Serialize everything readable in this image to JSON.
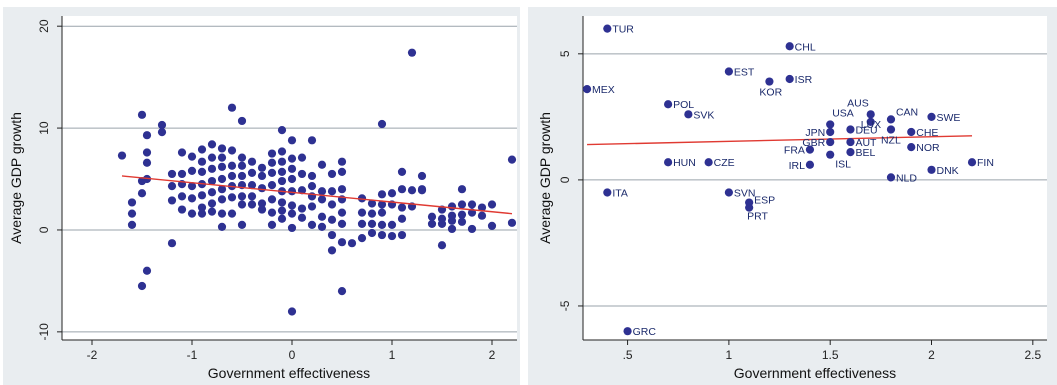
{
  "colors": {
    "point": "#2e3192",
    "fit_line": "#e03a32",
    "panel_bg": "#e9edf0",
    "plot_bg": "#ffffff",
    "grid": "#9aa3ab"
  },
  "chart_data": [
    {
      "type": "scatter",
      "title": "",
      "xlabel": "Government effectiveness",
      "ylabel": "Average GDP growth",
      "xlim": [
        -2.3,
        2.25
      ],
      "ylim": [
        -10.8,
        21
      ],
      "xticks": [
        -2,
        -1,
        0,
        1,
        2
      ],
      "xtick_labels": [
        "-2",
        "-1",
        "0",
        "1",
        "2"
      ],
      "yticks": [
        -10,
        0,
        10,
        20
      ],
      "ytick_labels": [
        "-10",
        "0",
        "10",
        "20"
      ],
      "grid": true,
      "fit_line": {
        "x": [
          -1.7,
          2.2
        ],
        "y": [
          5.3,
          1.6
        ]
      },
      "points": [
        {
          "x": -1.7,
          "y": 7.3
        },
        {
          "x": -1.6,
          "y": 2.7
        },
        {
          "x": -1.6,
          "y": 1.6
        },
        {
          "x": -1.6,
          "y": 0.5
        },
        {
          "x": -1.5,
          "y": 11.3
        },
        {
          "x": -1.5,
          "y": 4.8
        },
        {
          "x": -1.5,
          "y": 3.6
        },
        {
          "x": -1.5,
          "y": -5.5
        },
        {
          "x": -1.45,
          "y": 9.3
        },
        {
          "x": -1.45,
          "y": 7.6
        },
        {
          "x": -1.45,
          "y": 6.6
        },
        {
          "x": -1.45,
          "y": 5.0
        },
        {
          "x": -1.45,
          "y": -4.0
        },
        {
          "x": -1.3,
          "y": 10.3
        },
        {
          "x": -1.3,
          "y": 9.6
        },
        {
          "x": -1.2,
          "y": 5.5
        },
        {
          "x": -1.2,
          "y": 4.3
        },
        {
          "x": -1.2,
          "y": 2.9
        },
        {
          "x": -1.2,
          "y": -1.3
        },
        {
          "x": -1.1,
          "y": 7.6
        },
        {
          "x": -1.1,
          "y": 5.5
        },
        {
          "x": -1.1,
          "y": 4.5
        },
        {
          "x": -1.1,
          "y": 3.3
        },
        {
          "x": -1.1,
          "y": 2.0
        },
        {
          "x": -1.0,
          "y": 7.2
        },
        {
          "x": -1.0,
          "y": 5.8
        },
        {
          "x": -1.0,
          "y": 4.3
        },
        {
          "x": -1.0,
          "y": 3.1
        },
        {
          "x": -1.0,
          "y": 1.6
        },
        {
          "x": -0.9,
          "y": 7.9
        },
        {
          "x": -0.9,
          "y": 6.7
        },
        {
          "x": -0.9,
          "y": 5.7
        },
        {
          "x": -0.9,
          "y": 4.5
        },
        {
          "x": -0.9,
          "y": 3.4
        },
        {
          "x": -0.9,
          "y": 2.2
        },
        {
          "x": -0.9,
          "y": 1.6
        },
        {
          "x": -0.8,
          "y": 8.4
        },
        {
          "x": -0.8,
          "y": 7.1
        },
        {
          "x": -0.8,
          "y": 6.0
        },
        {
          "x": -0.8,
          "y": 4.8
        },
        {
          "x": -0.8,
          "y": 3.7
        },
        {
          "x": -0.8,
          "y": 2.6
        },
        {
          "x": -0.8,
          "y": 1.8
        },
        {
          "x": -0.7,
          "y": 8.0
        },
        {
          "x": -0.7,
          "y": 7.1
        },
        {
          "x": -0.7,
          "y": 6.2
        },
        {
          "x": -0.7,
          "y": 5.0
        },
        {
          "x": -0.7,
          "y": 4.0
        },
        {
          "x": -0.7,
          "y": 3.0
        },
        {
          "x": -0.7,
          "y": 1.6
        },
        {
          "x": -0.7,
          "y": 0.3
        },
        {
          "x": -0.6,
          "y": 12.0
        },
        {
          "x": -0.6,
          "y": 7.8
        },
        {
          "x": -0.6,
          "y": 6.3
        },
        {
          "x": -0.6,
          "y": 5.3
        },
        {
          "x": -0.6,
          "y": 4.3
        },
        {
          "x": -0.6,
          "y": 3.2
        },
        {
          "x": -0.6,
          "y": 1.6
        },
        {
          "x": -0.5,
          "y": 10.7
        },
        {
          "x": -0.5,
          "y": 7.1
        },
        {
          "x": -0.5,
          "y": 6.3
        },
        {
          "x": -0.5,
          "y": 5.3
        },
        {
          "x": -0.5,
          "y": 4.4
        },
        {
          "x": -0.5,
          "y": 3.3
        },
        {
          "x": -0.5,
          "y": 2.5
        },
        {
          "x": -0.5,
          "y": 0.5
        },
        {
          "x": -0.4,
          "y": 6.7
        },
        {
          "x": -0.4,
          "y": 5.6
        },
        {
          "x": -0.4,
          "y": 4.4
        },
        {
          "x": -0.4,
          "y": 3.3
        },
        {
          "x": -0.4,
          "y": 2.5
        },
        {
          "x": -0.3,
          "y": 6.1
        },
        {
          "x": -0.3,
          "y": 5.3
        },
        {
          "x": -0.3,
          "y": 4.1
        },
        {
          "x": -0.3,
          "y": 2.6
        },
        {
          "x": -0.3,
          "y": 2.0
        },
        {
          "x": -0.2,
          "y": 7.5
        },
        {
          "x": -0.2,
          "y": 6.6
        },
        {
          "x": -0.2,
          "y": 5.6
        },
        {
          "x": -0.2,
          "y": 4.4
        },
        {
          "x": -0.2,
          "y": 3.0
        },
        {
          "x": -0.2,
          "y": 1.7
        },
        {
          "x": -0.2,
          "y": 0.5
        },
        {
          "x": -0.1,
          "y": 9.8
        },
        {
          "x": -0.1,
          "y": 7.7
        },
        {
          "x": -0.1,
          "y": 6.7
        },
        {
          "x": -0.1,
          "y": 5.7
        },
        {
          "x": -0.1,
          "y": 4.8
        },
        {
          "x": -0.1,
          "y": 3.8
        },
        {
          "x": -0.1,
          "y": 2.7
        },
        {
          "x": -0.1,
          "y": 1.9
        },
        {
          "x": -0.1,
          "y": 1.1
        },
        {
          "x": 0.0,
          "y": 8.8
        },
        {
          "x": 0.0,
          "y": 7.0
        },
        {
          "x": 0.0,
          "y": 6.0
        },
        {
          "x": 0.0,
          "y": 5.0
        },
        {
          "x": 0.0,
          "y": 3.8
        },
        {
          "x": 0.0,
          "y": 2.4
        },
        {
          "x": 0.0,
          "y": 1.6
        },
        {
          "x": 0.0,
          "y": 0.2
        },
        {
          "x": 0.0,
          "y": -8.0
        },
        {
          "x": 0.1,
          "y": 7.1
        },
        {
          "x": 0.1,
          "y": 5.5
        },
        {
          "x": 0.1,
          "y": 3.9
        },
        {
          "x": 0.1,
          "y": 2.1
        },
        {
          "x": 0.1,
          "y": 1.2
        },
        {
          "x": 0.2,
          "y": 8.8
        },
        {
          "x": 0.2,
          "y": 5.3
        },
        {
          "x": 0.2,
          "y": 4.3
        },
        {
          "x": 0.2,
          "y": 3.3
        },
        {
          "x": 0.2,
          "y": 2.3
        },
        {
          "x": 0.2,
          "y": 0.5
        },
        {
          "x": 0.3,
          "y": 6.4
        },
        {
          "x": 0.3,
          "y": 3.8
        },
        {
          "x": 0.3,
          "y": 3.0
        },
        {
          "x": 0.3,
          "y": 1.3
        },
        {
          "x": 0.3,
          "y": 0.3
        },
        {
          "x": 0.4,
          "y": 5.5
        },
        {
          "x": 0.4,
          "y": 3.8
        },
        {
          "x": 0.4,
          "y": 2.5
        },
        {
          "x": 0.4,
          "y": 1.0
        },
        {
          "x": 0.4,
          "y": -0.5
        },
        {
          "x": 0.4,
          "y": -2.0
        },
        {
          "x": 0.5,
          "y": 6.7
        },
        {
          "x": 0.5,
          "y": 5.7
        },
        {
          "x": 0.5,
          "y": 4.0
        },
        {
          "x": 0.5,
          "y": 3.0
        },
        {
          "x": 0.5,
          "y": 1.7
        },
        {
          "x": 0.5,
          "y": 0.6
        },
        {
          "x": 0.5,
          "y": -1.2
        },
        {
          "x": 0.5,
          "y": -6.0
        },
        {
          "x": 0.6,
          "y": -1.3
        },
        {
          "x": 0.7,
          "y": 3.1
        },
        {
          "x": 0.7,
          "y": 1.7
        },
        {
          "x": 0.7,
          "y": 0.6
        },
        {
          "x": 0.7,
          "y": -0.8
        },
        {
          "x": 0.8,
          "y": 2.6
        },
        {
          "x": 0.8,
          "y": 1.6
        },
        {
          "x": 0.8,
          "y": 0.6
        },
        {
          "x": 0.8,
          "y": -0.3
        },
        {
          "x": 0.9,
          "y": 3.5
        },
        {
          "x": 0.9,
          "y": 2.5
        },
        {
          "x": 0.9,
          "y": 1.7
        },
        {
          "x": 0.9,
          "y": 0.5
        },
        {
          "x": 0.9,
          "y": -0.5
        },
        {
          "x": 0.9,
          "y": 10.4
        },
        {
          "x": 1.0,
          "y": 3.6
        },
        {
          "x": 1.0,
          "y": 2.5
        },
        {
          "x": 1.0,
          "y": 0.5
        },
        {
          "x": 1.0,
          "y": -0.6
        },
        {
          "x": 1.1,
          "y": 5.7
        },
        {
          "x": 1.1,
          "y": 4.0
        },
        {
          "x": 1.1,
          "y": 2.2
        },
        {
          "x": 1.1,
          "y": 1.1
        },
        {
          "x": 1.1,
          "y": -0.5
        },
        {
          "x": 1.2,
          "y": 17.4
        },
        {
          "x": 1.2,
          "y": 3.9
        },
        {
          "x": 1.2,
          "y": 2.3
        },
        {
          "x": 1.3,
          "y": 5.3
        },
        {
          "x": 1.3,
          "y": 4.0
        },
        {
          "x": 1.3,
          "y": 3.9
        },
        {
          "x": 1.4,
          "y": 1.3
        },
        {
          "x": 1.4,
          "y": 0.6
        },
        {
          "x": 1.5,
          "y": 2.0
        },
        {
          "x": 1.5,
          "y": 1.1
        },
        {
          "x": 1.5,
          "y": 0.6
        },
        {
          "x": 1.5,
          "y": -1.5
        },
        {
          "x": 1.6,
          "y": 2.3
        },
        {
          "x": 1.6,
          "y": 1.4
        },
        {
          "x": 1.6,
          "y": 0.9
        },
        {
          "x": 1.6,
          "y": 0.1
        },
        {
          "x": 1.7,
          "y": 4.0
        },
        {
          "x": 1.7,
          "y": 2.5
        },
        {
          "x": 1.7,
          "y": 1.5
        },
        {
          "x": 1.7,
          "y": 0.8
        },
        {
          "x": 1.8,
          "y": 2.5
        },
        {
          "x": 1.8,
          "y": 1.7
        },
        {
          "x": 1.8,
          "y": 0.1
        },
        {
          "x": 1.9,
          "y": 2.2
        },
        {
          "x": 1.9,
          "y": 1.4
        },
        {
          "x": 2.0,
          "y": 2.5
        },
        {
          "x": 2.0,
          "y": 0.4
        },
        {
          "x": 2.2,
          "y": 6.9
        },
        {
          "x": 2.2,
          "y": 0.7
        }
      ]
    },
    {
      "type": "scatter",
      "title": "",
      "xlabel": "Government effectiveness",
      "ylabel": "Average GDP growth",
      "xlim": [
        0.28,
        2.57
      ],
      "ylim": [
        -6.35,
        6.5
      ],
      "xticks": [
        0.5,
        1,
        1.5,
        2,
        2.5
      ],
      "xtick_labels": [
        ".5",
        "1",
        "1.5",
        "2",
        "2.5"
      ],
      "yticks": [
        -5,
        0,
        5
      ],
      "ytick_labels": [
        "-5",
        "0",
        "5"
      ],
      "grid": true,
      "fit_line": {
        "x": [
          0.3,
          2.2
        ],
        "y": [
          1.4,
          1.75
        ]
      },
      "points": [
        {
          "x": 0.4,
          "y": 6.0,
          "label": "TUR"
        },
        {
          "x": 1.3,
          "y": 5.3,
          "label": "CHL"
        },
        {
          "x": 1.0,
          "y": 4.3,
          "label": "EST"
        },
        {
          "x": 1.3,
          "y": 4.0,
          "label": "ISR"
        },
        {
          "x": 1.2,
          "y": 3.9,
          "label": "KOR"
        },
        {
          "x": 0.3,
          "y": 3.6,
          "label": "MEX"
        },
        {
          "x": 0.7,
          "y": 3.0,
          "label": "POL"
        },
        {
          "x": 0.8,
          "y": 2.6,
          "label": "SVK"
        },
        {
          "x": 1.7,
          "y": 2.6,
          "label": "AUS"
        },
        {
          "x": 1.8,
          "y": 2.4,
          "label": "CAN"
        },
        {
          "x": 1.7,
          "y": 2.3,
          "label": "LUX"
        },
        {
          "x": 2.0,
          "y": 2.5,
          "label": "SWE"
        },
        {
          "x": 1.5,
          "y": 2.2,
          "label": "USA"
        },
        {
          "x": 1.5,
          "y": 1.9,
          "label": "JPN"
        },
        {
          "x": 1.6,
          "y": 2.0,
          "label": "DEU"
        },
        {
          "x": 1.9,
          "y": 1.9,
          "label": "CHE"
        },
        {
          "x": 1.8,
          "y": 2.0,
          "label": "NZL"
        },
        {
          "x": 1.5,
          "y": 1.5,
          "label": "GBR"
        },
        {
          "x": 1.6,
          "y": 1.5,
          "label": "AUT"
        },
        {
          "x": 1.4,
          "y": 1.2,
          "label": "FRA"
        },
        {
          "x": 1.9,
          "y": 1.3,
          "label": "NOR"
        },
        {
          "x": 1.6,
          "y": 1.1,
          "label": "BEL"
        },
        {
          "x": 1.5,
          "y": 1.0,
          "label": "ISL"
        },
        {
          "x": 1.4,
          "y": 0.6,
          "label": "IRL"
        },
        {
          "x": 0.7,
          "y": 0.7,
          "label": "HUN"
        },
        {
          "x": 0.9,
          "y": 0.7,
          "label": "CZE"
        },
        {
          "x": 2.2,
          "y": 0.7,
          "label": "FIN"
        },
        {
          "x": 2.0,
          "y": 0.4,
          "label": "DNK"
        },
        {
          "x": 1.8,
          "y": 0.1,
          "label": "NLD"
        },
        {
          "x": 0.4,
          "y": -0.5,
          "label": "ITA"
        },
        {
          "x": 1.0,
          "y": -0.5,
          "label": "SVN"
        },
        {
          "x": 1.1,
          "y": -0.9,
          "label": "ESP"
        },
        {
          "x": 1.1,
          "y": -1.1,
          "label": "PRT"
        },
        {
          "x": 0.5,
          "y": -6.0,
          "label": "GRC"
        }
      ]
    }
  ]
}
